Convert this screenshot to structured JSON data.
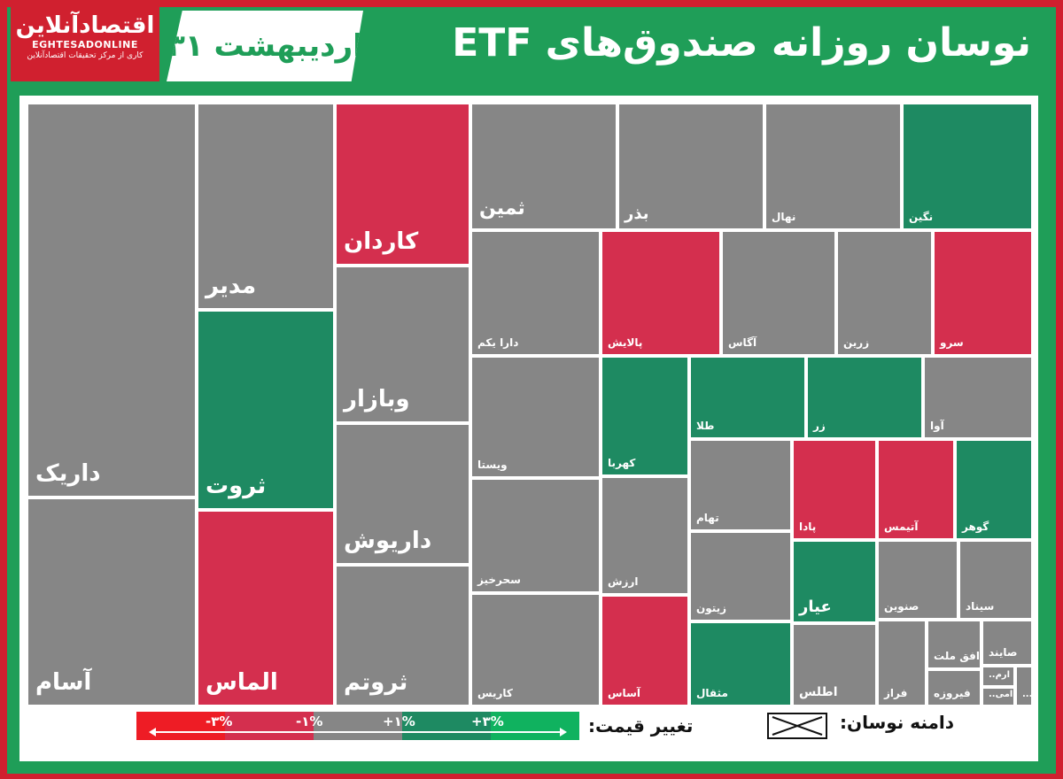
{
  "header": {
    "logo_text": "اقتصادآنلاین",
    "logo_latin": "EGHTESADONLINE",
    "logo_tagline": "کاری از مرکز تحقیقات اقتصادآنلاین",
    "date": "۳۱ اردیبهشت",
    "title": "نوسان روزانه صندوق‌های ETF"
  },
  "colors": {
    "neg3": "#ee1c25",
    "neg1": "#d42f4e",
    "neutral": "#868686",
    "pos1": "#1e8a62",
    "pos3": "#10b25f"
  },
  "legend": {
    "title": "تغییر قیمت:",
    "range_title": "دامنه نوسان:",
    "labels": [
      "-۳%",
      "-۱%",
      "+۱%",
      "+۳%"
    ],
    "scale_colors": [
      "#ee1c25",
      "#d42f4e",
      "#868686",
      "#1e8a62",
      "#10b25f"
    ]
  },
  "chart_data": {
    "type": "treemap",
    "title": "نوسان روزانه صندوق‌های ETF",
    "items": [
      {
        "name": "داریک",
        "status": "neutral"
      },
      {
        "name": "آسام",
        "status": "neutral"
      },
      {
        "name": "مدیر",
        "status": "neutral"
      },
      {
        "name": "ثروت",
        "status": "positive"
      },
      {
        "name": "الماس",
        "status": "negative"
      },
      {
        "name": "کاردان",
        "status": "negative"
      },
      {
        "name": "وبازار",
        "status": "neutral"
      },
      {
        "name": "داریوش",
        "status": "neutral"
      },
      {
        "name": "ثروتم",
        "status": "neutral"
      },
      {
        "name": "ثمین",
        "status": "neutral"
      },
      {
        "name": "بذر",
        "status": "neutral"
      },
      {
        "name": "نهال",
        "status": "neutral"
      },
      {
        "name": "نگین",
        "status": "positive"
      },
      {
        "name": "دارا یکم",
        "status": "neutral"
      },
      {
        "name": "پالایش",
        "status": "negative"
      },
      {
        "name": "آگاس",
        "status": "neutral"
      },
      {
        "name": "زرین",
        "status": "neutral"
      },
      {
        "name": "سرو",
        "status": "negative"
      },
      {
        "name": "ویستا",
        "status": "neutral"
      },
      {
        "name": "کهربا",
        "status": "positive"
      },
      {
        "name": "طلا",
        "status": "positive"
      },
      {
        "name": "زر",
        "status": "positive"
      },
      {
        "name": "آوا",
        "status": "neutral"
      },
      {
        "name": "سحرخیز",
        "status": "neutral"
      },
      {
        "name": "ارزش",
        "status": "neutral"
      },
      {
        "name": "تهام",
        "status": "neutral"
      },
      {
        "name": "پادا",
        "status": "negative"
      },
      {
        "name": "آتیمس",
        "status": "negative"
      },
      {
        "name": "گوهر",
        "status": "positive"
      },
      {
        "name": "زیتون",
        "status": "neutral"
      },
      {
        "name": "عیار",
        "status": "positive"
      },
      {
        "name": "صنوین",
        "status": "neutral"
      },
      {
        "name": "سیناد",
        "status": "neutral"
      },
      {
        "name": "کاریس",
        "status": "neutral"
      },
      {
        "name": "آساس",
        "status": "negative"
      },
      {
        "name": "مثقال",
        "status": "positive"
      },
      {
        "name": "اطلس",
        "status": "neutral"
      },
      {
        "name": "فراز",
        "status": "neutral"
      },
      {
        "name": "افق ملت",
        "status": "neutral"
      },
      {
        "name": "صایند",
        "status": "neutral"
      },
      {
        "name": "فیروزه",
        "status": "neutral"
      },
      {
        "name": "ارم..",
        "status": "neutral"
      },
      {
        "name": "امی..",
        "status": "neutral"
      },
      {
        "name": "...",
        "status": "neutral"
      }
    ]
  }
}
